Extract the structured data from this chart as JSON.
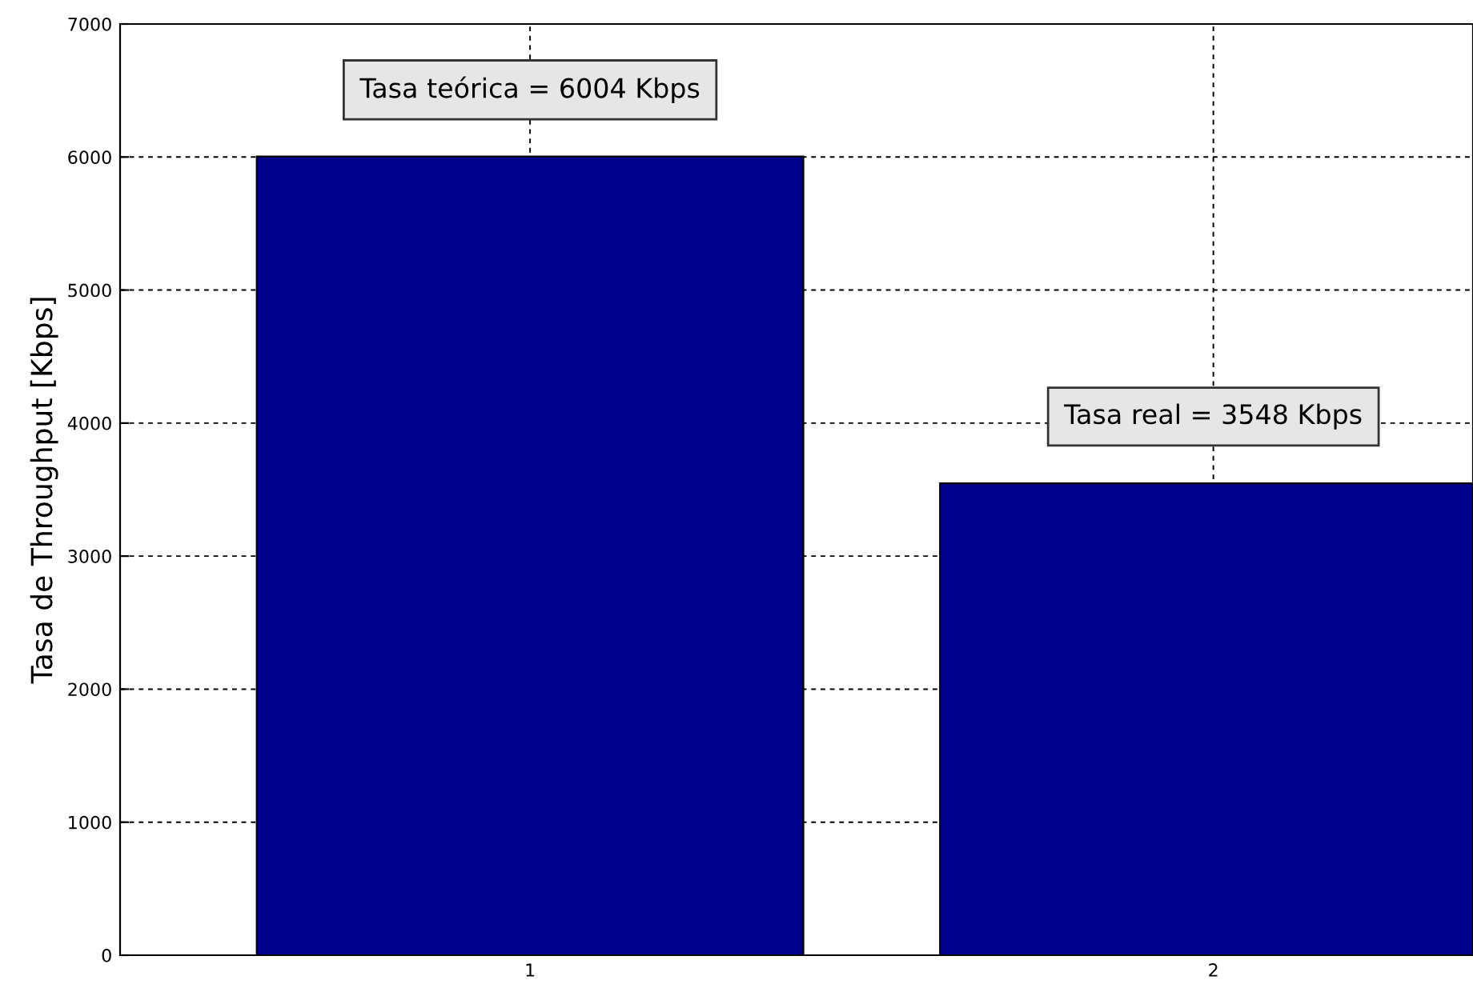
{
  "chart_data": {
    "type": "bar",
    "ylabel": "Tasa de Throughput [Kbps]",
    "x": [
      1,
      2
    ],
    "values": [
      6004,
      3548
    ],
    "color": "#00008f",
    "xlim": [
      0.4,
      2.38
    ],
    "xticks": [
      1,
      2
    ],
    "ylim": [
      0,
      7000
    ],
    "yticks": [
      0,
      1000,
      2000,
      3000,
      4000,
      5000,
      6000,
      7000
    ],
    "grid": true,
    "annotations": [
      {
        "text": "Tasa teórica = 6004 Kbps",
        "x": 1,
        "y": 6004
      },
      {
        "text": "Tasa real = 3548 Kbps",
        "x": 2,
        "y": 3548
      }
    ]
  }
}
